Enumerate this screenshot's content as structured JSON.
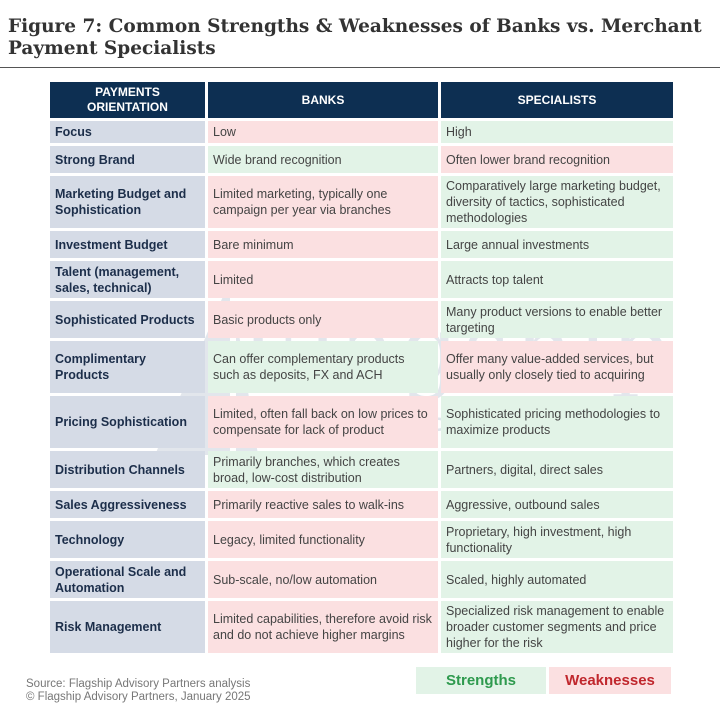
{
  "title": "Figure 7: Common Strengths & Weaknesses of Banks vs. Merchant Payment Specialists",
  "headers": [
    "PAYMENTS ORIENTATION",
    "BANKS",
    "SPECIALISTS"
  ],
  "rows": [
    {
      "label": "Focus",
      "banks": "Low",
      "banks_type": "weak",
      "specialists": "High",
      "specialists_type": "str"
    },
    {
      "label": "Strong Brand",
      "banks": "Wide brand recognition",
      "banks_type": "str",
      "specialists": "Often lower brand recognition",
      "specialists_type": "weak"
    },
    {
      "label": "Marketing Budget and Sophistication",
      "banks": "Limited marketing, typically one campaign per year via branches",
      "banks_type": "weak",
      "specialists": "Comparatively large marketing budget, diversity of tactics, sophisticated methodologies",
      "specialists_type": "str"
    },
    {
      "label": "Investment Budget",
      "banks": "Bare minimum",
      "banks_type": "weak",
      "specialists": "Large annual investments",
      "specialists_type": "str"
    },
    {
      "label": "Talent (management, sales, technical)",
      "banks": "Limited",
      "banks_type": "weak",
      "specialists": "Attracts top talent",
      "specialists_type": "str"
    },
    {
      "label": "Sophisticated Products",
      "banks": "Basic products only",
      "banks_type": "weak",
      "specialists": "Many product versions to enable better targeting",
      "specialists_type": "str"
    },
    {
      "label": "Complimentary Products",
      "banks": "Can offer complementary products such as deposits, FX and ACH",
      "banks_type": "str",
      "specialists": "Offer many value-added services, but usually only closely tied to acquiring",
      "specialists_type": "weak"
    },
    {
      "label": "Pricing Sophistication",
      "banks": "Limited, often fall back on low prices to compensate for lack of product",
      "banks_type": "weak",
      "specialists": "Sophisticated pricing methodologies to maximize products",
      "specialists_type": "str"
    },
    {
      "label": "Distribution Channels",
      "banks": "Primarily branches, which creates broad, low-cost distribution",
      "banks_type": "str",
      "specialists": "Partners, digital, direct sales",
      "specialists_type": "str"
    },
    {
      "label": "Sales Aggressiveness",
      "banks": "Primarily reactive sales to walk-ins",
      "banks_type": "weak",
      "specialists": "Aggressive, outbound sales",
      "specialists_type": "str"
    },
    {
      "label": "Technology",
      "banks": "Legacy, limited functionality",
      "banks_type": "weak",
      "specialists": "Proprietary, high investment, high functionality",
      "specialists_type": "str"
    },
    {
      "label": "Operational Scale and Automation",
      "banks": "Sub-scale, no/low automation",
      "banks_type": "weak",
      "specialists": "Scaled, highly automated",
      "specialists_type": "str"
    },
    {
      "label": "Risk Management",
      "banks": "Limited capabilities, therefore avoid risk and do not achieve higher margins",
      "banks_type": "weak",
      "specialists": "Specialized risk management to enable broader customer segments and price higher for the risk",
      "specialists_type": "str"
    }
  ],
  "row_heights": [
    22,
    27,
    52,
    27,
    37,
    37,
    52,
    52,
    37,
    27,
    37,
    37,
    52
  ],
  "watermark": {
    "word": "Flagship",
    "sub": "ADVISORY PARTNERS"
  },
  "source_line1": "Source: Flagship Advisory Partners analysis",
  "source_line2": "© Flagship Advisory Partners, January 2025",
  "legend": {
    "strengths": "Strengths",
    "weaknesses": "Weaknesses"
  },
  "colors": {
    "header": "#0d2f52",
    "label_bg": "#d5dbe6",
    "strength_bg": "#e2f3e7",
    "weakness_bg": "#fbe0e1",
    "strength_text": "#2e9a4e",
    "weakness_text": "#c0272d"
  }
}
